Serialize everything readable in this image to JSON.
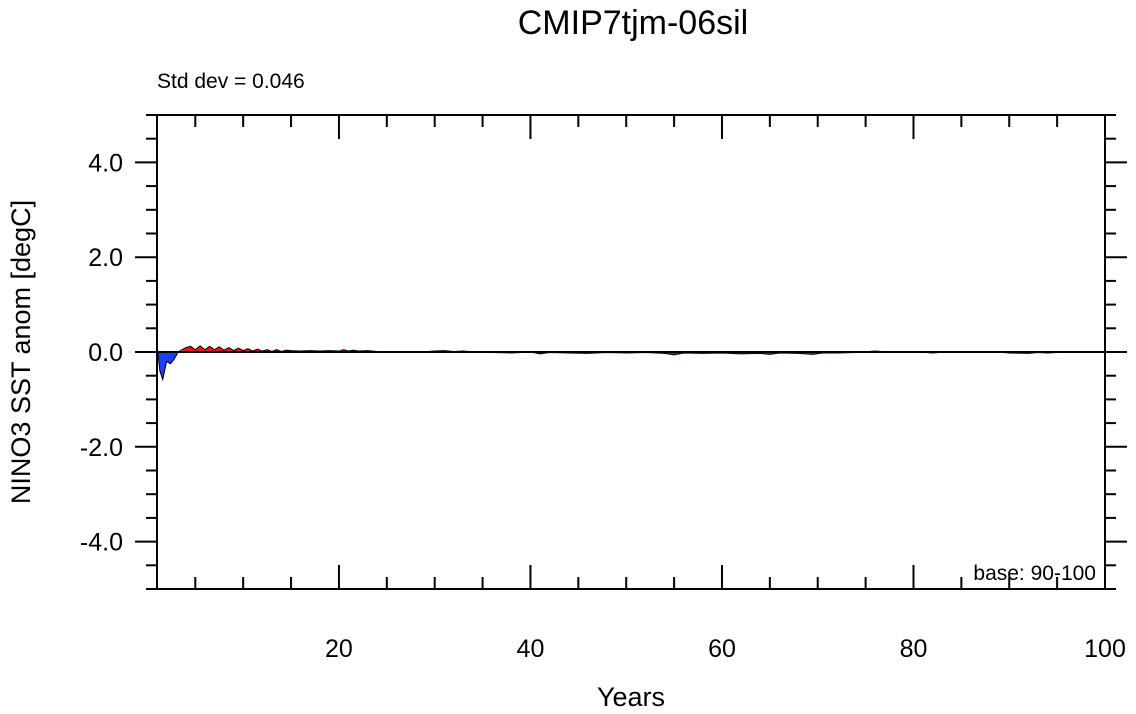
{
  "chart_data": {
    "type": "area",
    "title": "CMIP7tjm-06sil",
    "xlabel": "Years",
    "ylabel": "NINO3 SST anom [degC]",
    "xlim": [
      1,
      100
    ],
    "ylim": [
      -5,
      5
    ],
    "x_ticks": [
      20,
      40,
      60,
      80,
      100
    ],
    "x_tick_labels": [
      "20",
      "40",
      "60",
      "80",
      "100"
    ],
    "y_ticks": [
      4,
      2,
      0,
      -2,
      -4
    ],
    "y_tick_labels": [
      "4.0",
      "2.0",
      "0.0",
      "-2.0",
      "-4.0"
    ],
    "annotations": {
      "std_dev": "Std dev = 0.046",
      "base": "base: 90-100"
    },
    "fill_colors": {
      "positive": "#e31a1c",
      "negative": "#1f3cff"
    },
    "grid": false,
    "series": [
      {
        "x": [
          1.0,
          1.3,
          1.6,
          2.0,
          2.4,
          2.8,
          3.2,
          3.6,
          4.0,
          4.5,
          5.0,
          5.5,
          6.0,
          6.5,
          7.0,
          7.5,
          8.0,
          8.5,
          9.0,
          9.5,
          10.0,
          10.5,
          11.0,
          11.5,
          12.0,
          12.5,
          13.0,
          13.5,
          14.0,
          14.5,
          15.0,
          16.0,
          17.0,
          18.0,
          19.0,
          20.0,
          20.5,
          21.0,
          21.5,
          22.0,
          23.0,
          24.0,
          25.0,
          26.0,
          28.0,
          30.0,
          31.0,
          32.0,
          33.0,
          34.0,
          36.0,
          38.0,
          40.0,
          41.0,
          42.0,
          44.0,
          46.0,
          48.0,
          50.0,
          52.0,
          54.0,
          55.0,
          56.0,
          58.0,
          60.0,
          62.0,
          64.0,
          65.0,
          66.0,
          68.0,
          69.5,
          70.5,
          72.0,
          74.0,
          76.0,
          78.0,
          80.0,
          82.0,
          84.0,
          86.0,
          88.0,
          90.0,
          92.0,
          93.0,
          94.0,
          96.0,
          98.0,
          100.0
        ],
        "y": [
          0.15,
          -0.4,
          -0.58,
          -0.2,
          -0.25,
          -0.15,
          0.0,
          0.05,
          0.09,
          0.12,
          0.05,
          0.13,
          0.05,
          0.12,
          0.05,
          0.11,
          0.04,
          0.09,
          0.03,
          0.08,
          0.03,
          0.07,
          0.02,
          0.06,
          0.02,
          0.05,
          0.01,
          0.05,
          0.01,
          0.04,
          0.03,
          0.02,
          0.03,
          0.02,
          0.03,
          0.02,
          0.05,
          0.02,
          0.04,
          0.02,
          0.03,
          0.01,
          0.0,
          0.01,
          -0.01,
          0.02,
          0.03,
          0.01,
          0.02,
          0.0,
          -0.01,
          -0.02,
          0.0,
          -0.04,
          -0.01,
          -0.02,
          -0.03,
          -0.01,
          -0.02,
          -0.01,
          -0.03,
          -0.06,
          -0.02,
          -0.03,
          -0.02,
          -0.04,
          -0.03,
          -0.05,
          -0.02,
          -0.03,
          -0.05,
          -0.02,
          -0.02,
          -0.01,
          0.02,
          -0.01,
          0.01,
          -0.02,
          0.01,
          -0.01,
          0.01,
          -0.02,
          -0.03,
          -0.01,
          -0.02,
          0.0,
          0.01,
          0.01
        ]
      }
    ]
  }
}
